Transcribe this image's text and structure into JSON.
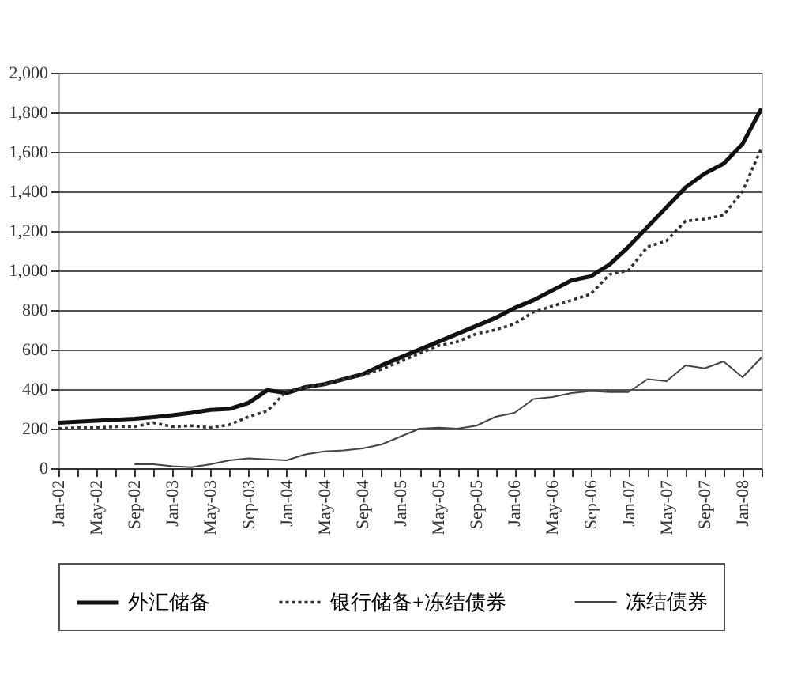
{
  "chart_data": {
    "type": "line",
    "categories": [
      "Jan-02",
      null,
      "May-02",
      null,
      "Sep-02",
      null,
      "Jan-03",
      null,
      "May-03",
      null,
      "Sep-03",
      null,
      "Jan-04",
      null,
      "May-04",
      null,
      "Sep-04",
      null,
      "Jan-05",
      null,
      "May-05",
      null,
      "Sep-05",
      null,
      "Jan-06",
      null,
      "May-06",
      null,
      "Sep-06",
      null,
      "Jan-07",
      null,
      "May-07",
      null,
      "Sep-07",
      null,
      "Jan-08",
      null
    ],
    "series": [
      {
        "name": "外汇储备",
        "color": "#111111",
        "line_style": "solid",
        "values": [
          230,
          235,
          240,
          245,
          250,
          258,
          268,
          280,
          295,
          300,
          330,
          395,
          380,
          410,
          425,
          450,
          475,
          520,
          560,
          600,
          640,
          680,
          720,
          760,
          810,
          850,
          900,
          950,
          970,
          1030,
          1120,
          1220,
          1320,
          1420,
          1490,
          1540,
          1640,
          1820
        ]
      },
      {
        "name": "银行储备+冻结债券",
        "color": "#333333",
        "line_style": "dotted",
        "values": [
          200,
          205,
          205,
          210,
          210,
          230,
          210,
          215,
          205,
          220,
          260,
          290,
          390,
          410,
          425,
          450,
          470,
          500,
          540,
          580,
          620,
          640,
          680,
          700,
          730,
          790,
          820,
          850,
          880,
          980,
          1000,
          1120,
          1150,
          1250,
          1260,
          1280,
          1400,
          1620
        ]
      },
      {
        "name": "冻结债券",
        "color": "#444444",
        "line_style": "solid",
        "values": [
          null,
          null,
          null,
          null,
          20,
          20,
          10,
          5,
          20,
          40,
          50,
          45,
          40,
          70,
          85,
          90,
          100,
          120,
          160,
          200,
          205,
          200,
          215,
          260,
          280,
          350,
          360,
          380,
          390,
          385,
          385,
          450,
          440,
          520,
          505,
          540,
          460,
          560
        ]
      }
    ],
    "ylim": [
      0,
      2000
    ],
    "yticks": [
      0,
      200,
      400,
      600,
      800,
      {
        "value": 1000,
        "label": "1,000"
      },
      {
        "value": 1200,
        "label": "1,200"
      },
      {
        "value": 1400,
        "label": "1,400"
      },
      {
        "value": 1600,
        "label": "1,600"
      },
      {
        "value": 1800,
        "label": "1,800"
      },
      {
        "value": 2000,
        "label": "2,000"
      }
    ],
    "grid": "y",
    "legend": "bottom",
    "marker": "none"
  }
}
